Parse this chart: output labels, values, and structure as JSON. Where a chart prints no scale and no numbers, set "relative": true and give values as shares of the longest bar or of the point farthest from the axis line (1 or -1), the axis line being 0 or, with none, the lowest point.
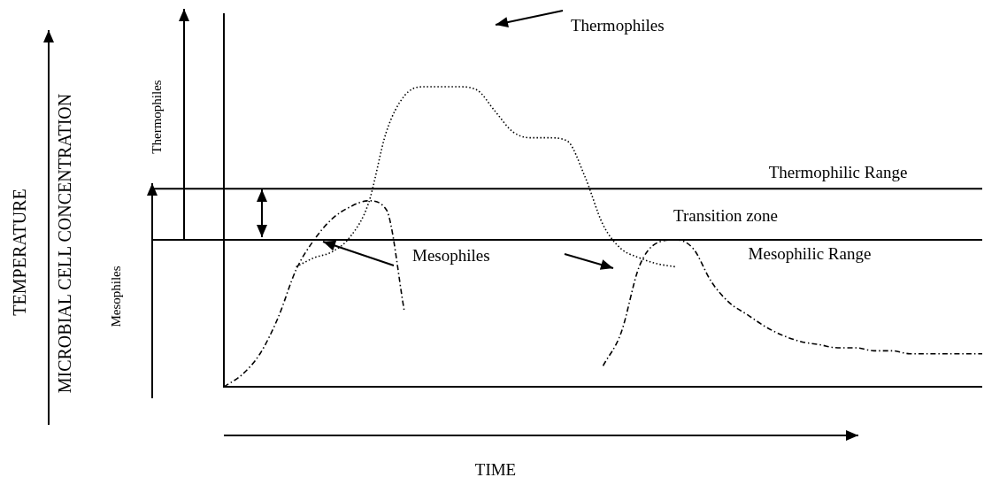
{
  "chart_data": {
    "type": "line",
    "relative": true,
    "marker": "none",
    "xlabel": "TIME",
    "annotations": [
      "MICROBIAL CELL CONCENTRATION",
      "TEMPERATURE",
      "Thermophiles",
      "Mesophiles",
      "Thermophiles",
      "Mesophiles",
      "Transition zone"
    ],
    "categories": [
      null,
      null,
      null,
      null,
      null,
      null,
      null,
      null,
      null,
      null,
      null,
      null,
      null,
      null,
      null,
      null,
      null,
      null,
      null,
      null,
      null,
      null,
      null,
      null,
      null,
      null,
      null,
      null,
      null,
      null,
      null,
      null,
      null,
      null,
      null,
      null,
      null,
      null,
      null,
      null,
      null,
      null,
      null
    ],
    "series": [
      {
        "color": "#000000",
        "line_style": "dashed",
        "values": [
          0,
          0.04,
          0.11,
          0.23,
          0.39,
          0.49,
          0.56,
          0.6,
          0.62,
          0.59,
          0.25,
          null,
          null,
          null,
          null,
          null,
          null,
          null,
          null,
          null,
          null,
          null,
          null,
          null,
          null,
          null,
          null,
          null,
          null,
          null,
          null,
          null,
          null,
          null,
          null,
          null,
          null,
          null,
          null,
          null,
          null,
          null,
          null
        ]
      },
      {
        "color": "#000000",
        "line_style": "dotted",
        "values": [
          null,
          null,
          null,
          null,
          0.4,
          0.43,
          0.45,
          0.5,
          0.61,
          0.85,
          0.97,
          1,
          1,
          1,
          0.99,
          0.92,
          0.85,
          0.83,
          0.83,
          0.82,
          0.7,
          0.54,
          0.46,
          0.43,
          0.41,
          0.4,
          null,
          null,
          null,
          null,
          null,
          null,
          null,
          null,
          null,
          null,
          null,
          null,
          null,
          null,
          null,
          null,
          null
        ]
      },
      {
        "color": "#000000",
        "line_style": "dashed",
        "values": [
          null,
          null,
          null,
          null,
          null,
          null,
          null,
          null,
          null,
          null,
          null,
          null,
          null,
          null,
          null,
          null,
          null,
          null,
          null,
          null,
          null,
          0.07,
          0.18,
          0.4,
          0.48,
          0.49,
          0.46,
          0.35,
          0.28,
          0.24,
          0.2,
          0.17,
          0.15,
          0.14,
          0.13,
          0.13,
          0.12,
          0.12,
          0.11,
          0.11,
          0.11,
          0.11,
          0.11
        ]
      }
    ],
    "ref_lines": [
      {
        "axis": "y",
        "value": 0.66,
        "label": "Thermophilic Range"
      },
      {
        "axis": "y",
        "value": 0.49,
        "label": "Mesophilic Range"
      }
    ]
  }
}
